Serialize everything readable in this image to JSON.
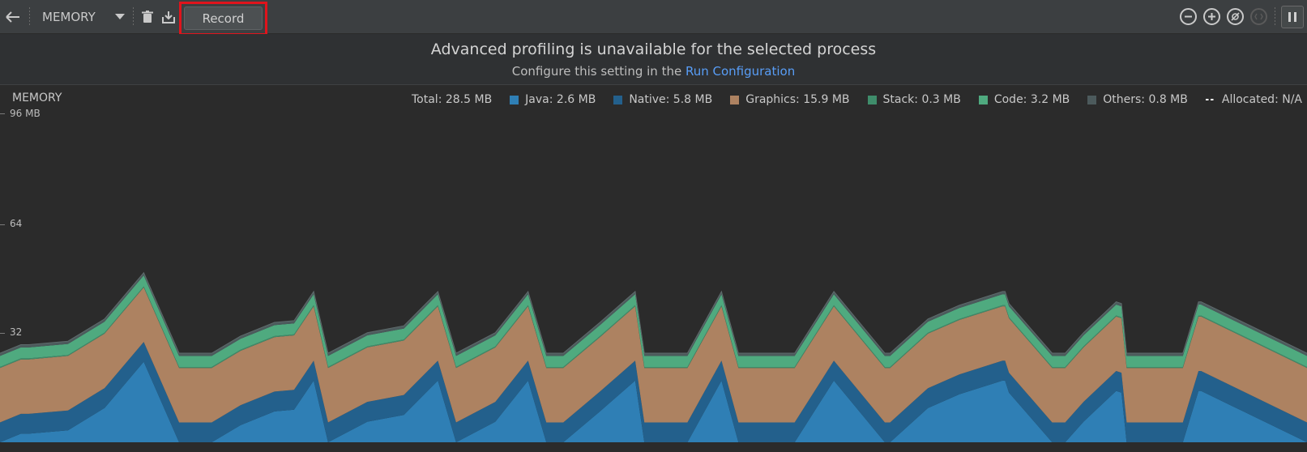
{
  "toolbar": {
    "back_icon": "arrow-left-icon",
    "profiler_label": "MEMORY",
    "dropdown_icon": "chevron-down-icon",
    "delete_icon": "trash-icon",
    "export_icon": "download-icon",
    "record_label": "Record",
    "zoom_out_icon": "zoom-out-icon",
    "zoom_in_icon": "zoom-in-icon",
    "reset_zoom_icon": "reset-zoom-icon",
    "attach_icon": "attach-icon",
    "pause_icon": "pause-icon"
  },
  "banner": {
    "message": "Advanced profiling is unavailable for the selected process",
    "sub_prefix": "Configure this setting in the ",
    "link": "Run Configuration"
  },
  "chart_data": {
    "type": "area",
    "title": "MEMORY",
    "yticks": [
      "96 MB",
      "64",
      "32"
    ],
    "ylim": [
      0,
      96
    ],
    "legend_placement": "top-right",
    "legend": [
      {
        "key": "total",
        "label": "Total: 28.5 MB"
      },
      {
        "key": "java",
        "label": "Java: 2.6 MB",
        "color": "#2f7fb5"
      },
      {
        "key": "native",
        "label": "Native: 5.8 MB",
        "color": "#23608c"
      },
      {
        "key": "graphics",
        "label": "Graphics: 15.9 MB",
        "color": "#ad8261"
      },
      {
        "key": "stack",
        "label": "Stack: 0.3 MB",
        "color": "#3f8d6b"
      },
      {
        "key": "code",
        "label": "Code: 3.2 MB",
        "color": "#4faa7f"
      },
      {
        "key": "others",
        "label": "Others: 0.8 MB",
        "color": "#4c5a5c"
      },
      {
        "key": "allocated",
        "label": "Allocated: N/A"
      }
    ],
    "x": [
      0,
      1.6,
      2.2,
      5.2,
      8,
      11,
      13.7,
      16.2,
      18.4,
      21,
      22.5,
      24,
      25.1,
      28.1,
      30.9,
      33.5,
      34.9,
      37.9,
      40.4,
      41.8,
      43.1,
      45.9,
      48.6,
      49.3,
      52.6,
      55.2,
      56.5,
      57.9,
      60.8,
      63.8,
      67.7,
      68.1,
      71,
      73.4,
      76.7,
      76.9,
      77.2,
      80.5,
      81.5,
      82.9,
      85.4,
      85.8,
      86.2,
      90.5,
      91.7,
      91.9,
      100
    ],
    "series": [
      {
        "key": "java",
        "values": [
          0,
          2.5,
          2.5,
          3.5,
          10,
          23.5,
          0,
          0,
          5,
          9,
          9.5,
          18,
          0,
          6,
          8,
          18,
          0,
          6,
          18,
          0,
          0,
          9,
          18,
          0,
          0,
          18,
          0,
          0,
          0,
          18,
          0,
          0,
          10,
          14,
          18,
          18,
          14.5,
          0,
          0,
          6,
          15,
          14.5,
          0,
          0,
          15,
          15,
          0
        ]
      },
      {
        "key": "native",
        "values": [
          5.8,
          5.8,
          5.8,
          5.8,
          5.8,
          5.8,
          5.8,
          5.8,
          5.8,
          5.8,
          5.8,
          5.8,
          5.8,
          5.8,
          5.8,
          5.8,
          5.8,
          5.8,
          5.8,
          5.8,
          5.8,
          5.8,
          5.8,
          5.8,
          5.8,
          5.8,
          5.8,
          5.8,
          5.8,
          5.8,
          5.8,
          5.8,
          5.8,
          5.8,
          5.8,
          5.8,
          5.8,
          5.8,
          5.8,
          5.8,
          5.8,
          5.8,
          5.8,
          5.8,
          5.8,
          5.8,
          5.8
        ]
      },
      {
        "key": "graphics",
        "values": [
          15.9,
          15.9,
          15.9,
          15.9,
          15.9,
          15.9,
          15.9,
          15.9,
          15.9,
          15.9,
          15.9,
          15.9,
          15.9,
          15.9,
          15.9,
          15.9,
          15.9,
          15.9,
          15.9,
          15.9,
          15.9,
          15.9,
          15.9,
          15.9,
          15.9,
          15.9,
          15.9,
          15.9,
          15.9,
          15.9,
          15.9,
          15.9,
          15.9,
          15.9,
          15.9,
          15.9,
          15.9,
          15.9,
          15.9,
          15.9,
          15.9,
          15.9,
          15.9,
          15.9,
          15.9,
          15.9,
          15.9
        ]
      },
      {
        "key": "stack",
        "values": [
          0.3,
          0.3,
          0.3,
          0.3,
          0.3,
          0.3,
          0.3,
          0.3,
          0.3,
          0.3,
          0.3,
          0.3,
          0.3,
          0.3,
          0.3,
          0.3,
          0.3,
          0.3,
          0.3,
          0.3,
          0.3,
          0.3,
          0.3,
          0.3,
          0.3,
          0.3,
          0.3,
          0.3,
          0.3,
          0.3,
          0.3,
          0.3,
          0.3,
          0.3,
          0.3,
          0.3,
          0.3,
          0.3,
          0.3,
          0.3,
          0.3,
          0.3,
          0.3,
          0.3,
          0.3,
          0.3,
          0.3
        ]
      },
      {
        "key": "code",
        "values": [
          3.2,
          3.2,
          3.2,
          3.2,
          3.2,
          3.2,
          3.2,
          3.2,
          3.2,
          3.2,
          3.2,
          3.2,
          3.2,
          3.2,
          3.2,
          3.2,
          3.2,
          3.2,
          3.2,
          3.2,
          3.2,
          3.2,
          3.2,
          3.2,
          3.2,
          3.2,
          3.2,
          3.2,
          3.2,
          3.2,
          3.2,
          3.2,
          3.2,
          3.2,
          3.2,
          3.2,
          3.2,
          3.2,
          3.2,
          3.2,
          3.2,
          3.2,
          3.2,
          3.2,
          3.2,
          3.2,
          3.2
        ]
      },
      {
        "key": "others",
        "values": [
          0.8,
          0.8,
          0.8,
          0.8,
          0.8,
          0.8,
          0.8,
          0.8,
          0.8,
          0.8,
          0.8,
          0.8,
          0.8,
          0.8,
          0.8,
          0.8,
          0.8,
          0.8,
          0.8,
          0.8,
          0.8,
          0.8,
          0.8,
          0.8,
          0.8,
          0.8,
          0.8,
          0.8,
          0.8,
          0.8,
          0.8,
          0.8,
          0.8,
          0.8,
          0.8,
          0.8,
          0.8,
          0.8,
          0.8,
          0.8,
          0.8,
          0.8,
          0.8,
          0.8,
          0.8,
          0.8,
          0.8
        ]
      }
    ]
  }
}
